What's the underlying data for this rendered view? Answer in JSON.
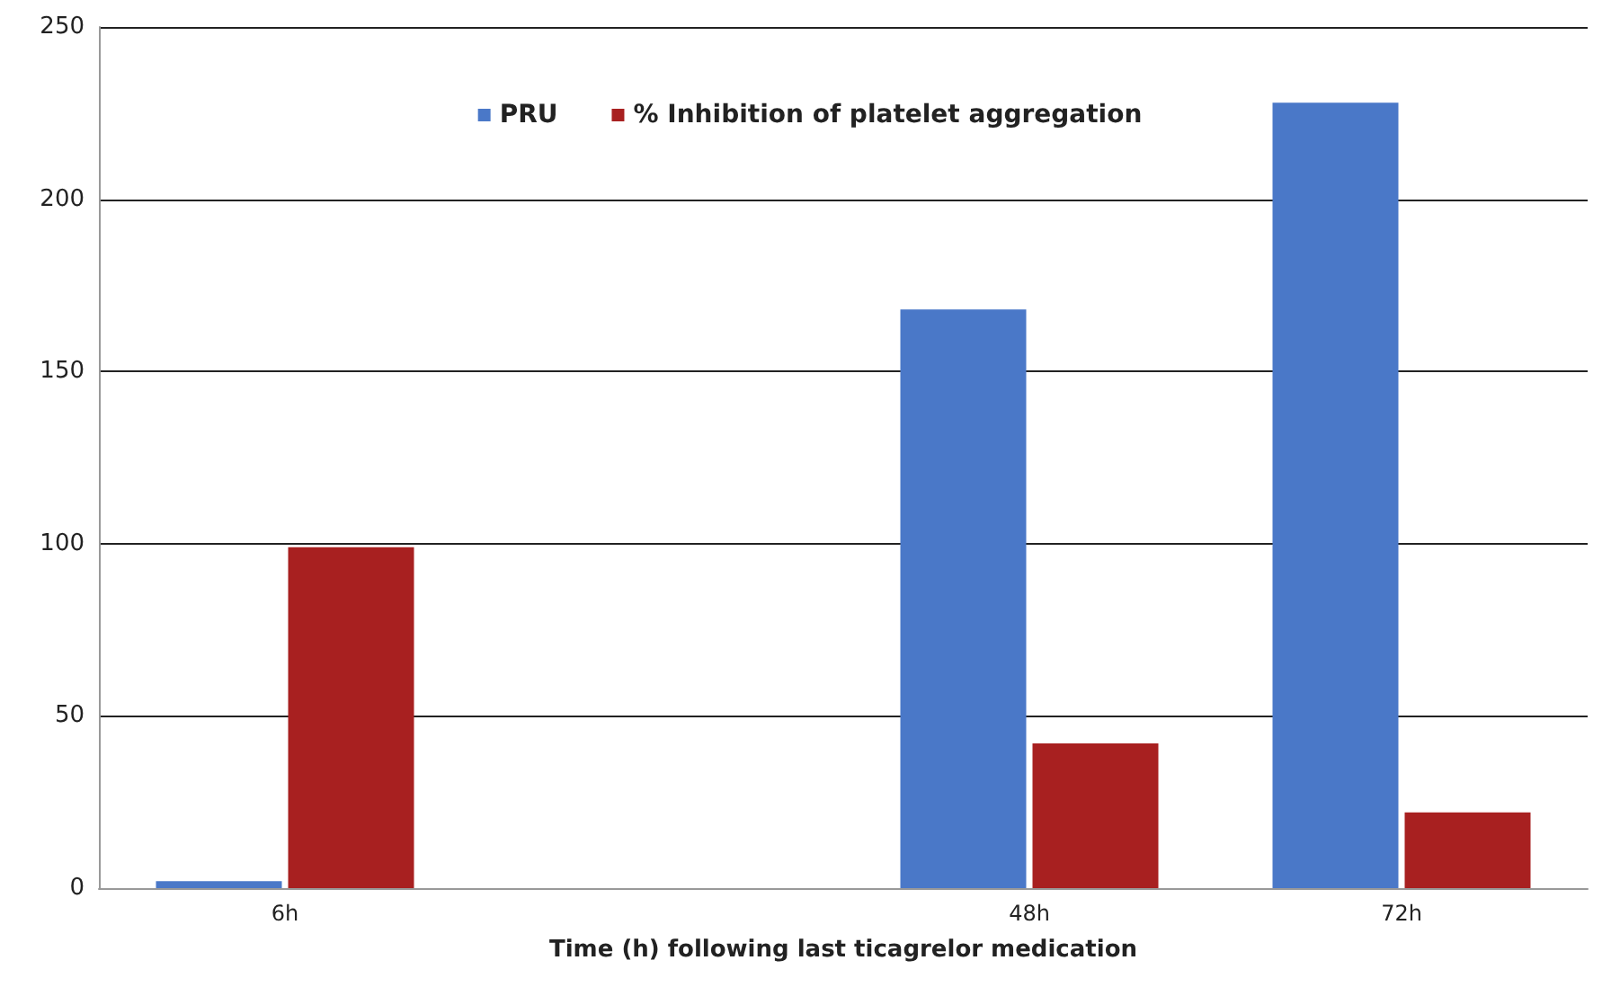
{
  "chart_data": {
    "type": "bar",
    "xlabel": "Time (h) following last ticagrelor medication",
    "categories": [
      "6h",
      null,
      "48h",
      "72h"
    ],
    "series": [
      {
        "name": "PRU",
        "color": "#4a78c8",
        "values": [
          2,
          null,
          168,
          228
        ]
      },
      {
        "name": "% Inhibition of platelet aggregation",
        "color": "#a82020",
        "values": [
          99,
          null,
          42,
          22
        ]
      }
    ],
    "ylim": [
      0,
      250
    ],
    "yticks": [
      0,
      50,
      100,
      150,
      200,
      250
    ],
    "grid": "y",
    "legend": "top"
  }
}
